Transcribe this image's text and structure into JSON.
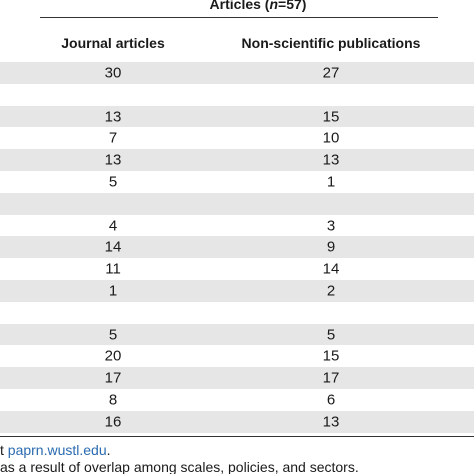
{
  "header": {
    "title_parts": [
      "Articles (",
      "n",
      "=57)"
    ],
    "columns": [
      "Journal articles",
      "Non-scientific publications"
    ]
  },
  "table": {
    "rows": [
      [
        "30",
        "27"
      ],
      null,
      [
        "13",
        "15"
      ],
      [
        "7",
        "10"
      ],
      [
        "13",
        "13"
      ],
      [
        "5",
        "1"
      ],
      null,
      [
        "4",
        "3"
      ],
      [
        "14",
        "9"
      ],
      [
        "11",
        "14"
      ],
      [
        "1",
        "2"
      ],
      null,
      [
        "5",
        "5"
      ],
      [
        "20",
        "15"
      ],
      [
        "17",
        "17"
      ],
      [
        "8",
        "6"
      ],
      [
        "16",
        "13"
      ]
    ]
  },
  "footnotes": {
    "source": {
      "prefix": "t",
      "link": "paprn.wustl.edu",
      "suffix": "."
    },
    "note": "as a result of overlap among scales, policies, and sectors."
  }
}
